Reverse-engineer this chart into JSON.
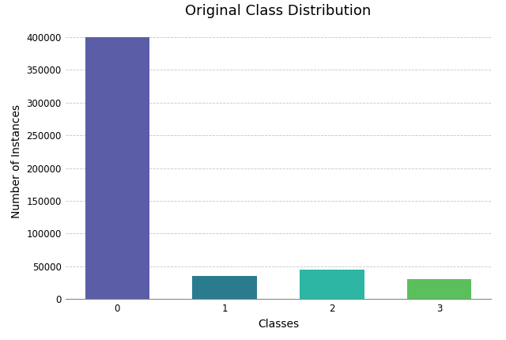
{
  "categories": [
    "0",
    "1",
    "2",
    "3"
  ],
  "values": [
    400000,
    36000,
    45000,
    31000
  ],
  "bar_colors": [
    "#5b5ea6",
    "#2a7b8e",
    "#2db6a3",
    "#5bbf5e"
  ],
  "title": "Original Class Distribution",
  "xlabel": "Classes",
  "ylabel": "Number of Instances",
  "ylim": [
    0,
    420000
  ],
  "yticks": [
    0,
    50000,
    100000,
    150000,
    200000,
    250000,
    300000,
    350000,
    400000
  ],
  "ytick_labels": [
    "0",
    "50000",
    "100000",
    "150000",
    "200000",
    "250000",
    "300000",
    "350000",
    "400000"
  ],
  "title_fontsize": 13,
  "label_fontsize": 10,
  "tick_fontsize": 8.5,
  "background_color": "#ffffff",
  "grid_color": "#aaaaaa",
  "bar_width": 0.6,
  "spine_color": "#888888"
}
